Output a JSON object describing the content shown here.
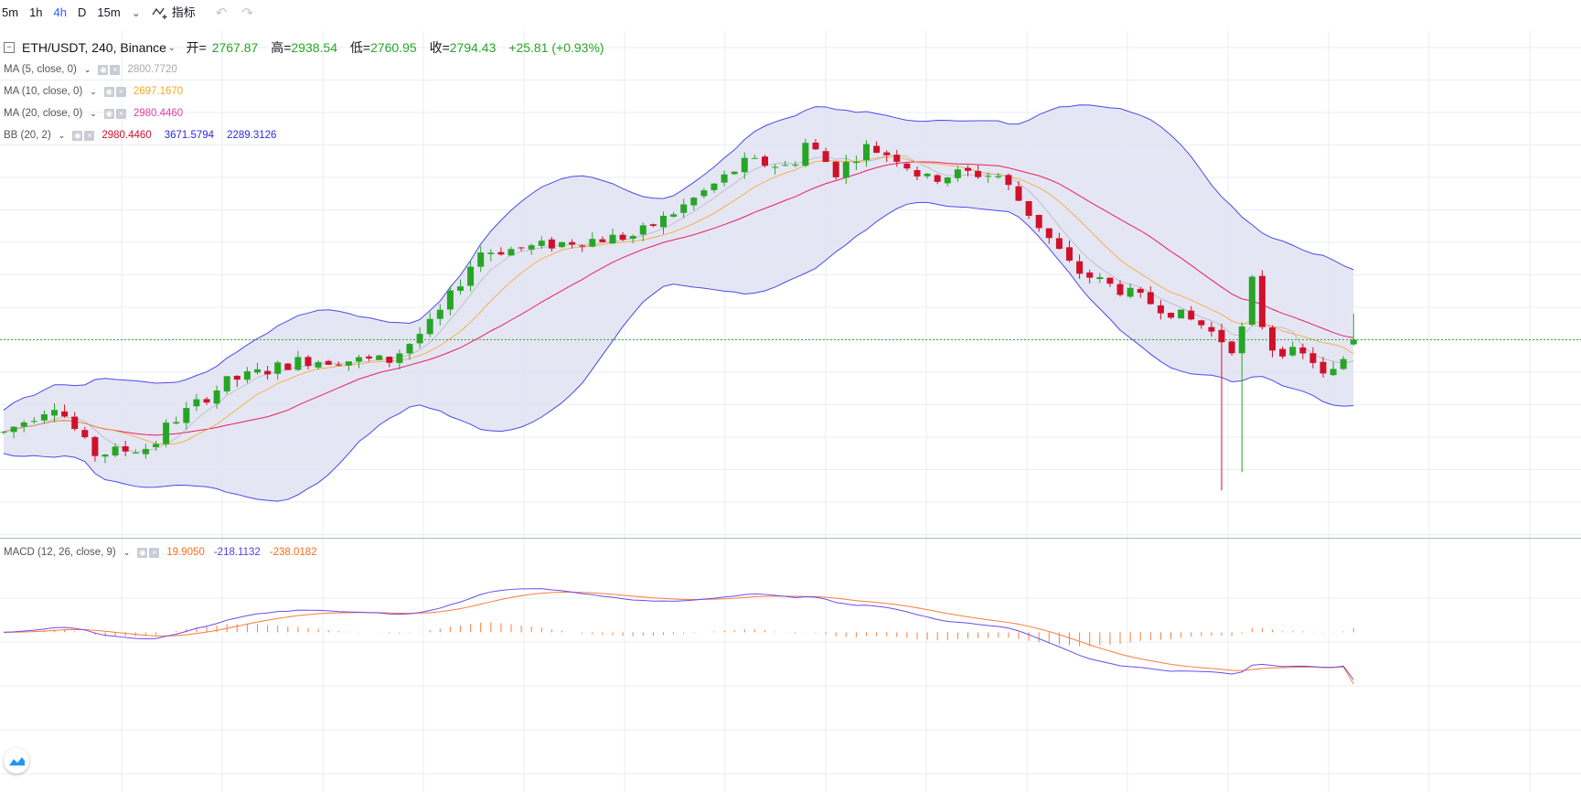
{
  "toolbar": {
    "intervals": [
      "5m",
      "1h",
      "4h",
      "D",
      "15m"
    ],
    "active": "4h",
    "more": "⌄",
    "indicators_icon": "indicator-icon",
    "indicators_label": "指标",
    "undo": "↶",
    "redo": "↷"
  },
  "legend": {
    "symbol": "ETH/USDT, 240, Binance",
    "open_label": "开=",
    "open": "2767.87",
    "high_label": "高=",
    "high": "2938.54",
    "low_label": "低=",
    "low": "2760.95",
    "close_label": "收=",
    "close": "2794.43",
    "change": "+25.81 (+0.93%)",
    "ma5_label": "MA (5, close, 0)",
    "ma5_value": "2800.7720",
    "ma10_label": "MA (10, close, 0)",
    "ma10_value": "2697.1670",
    "ma20_label": "MA (20, close, 0)",
    "ma20_value": "2980.4460",
    "bb_label": "BB (20, 2)",
    "bb_basis": "2980.4460",
    "bb_upper": "3671.5794",
    "bb_lower": "2289.3126",
    "macd_label": "MACD (12, 26, close, 9)",
    "macd_hist": "19.9050",
    "macd_line": "-218.1132",
    "macd_signal": "-238.0182"
  },
  "colors": {
    "up": "#26a626",
    "down": "#d0112b",
    "ma5": "#a9a9a9",
    "ma10": "#f5a623",
    "ma20": "#e91e63",
    "bb_basis": "#e91e63",
    "bb_band": "#4a4ae8",
    "bb_fill": "#e1e2f2",
    "macd": "#6a4cf0",
    "signal": "#ff7b3b",
    "hist": "#ff7b3b",
    "accent": "#2962ff",
    "price_line": "#26a626",
    "grid": "#e9eef3"
  },
  "chart_data": {
    "type": "candlestick",
    "title": "ETH/USDT, 240, Binance",
    "last_close": 2794.43,
    "y_range": [
      1900,
      4300
    ],
    "candles": [],
    "macd_range": [
      -650,
      300
    ],
    "macd_hist": [],
    "macd_line": [],
    "macd_signal": [],
    "grid": true
  }
}
